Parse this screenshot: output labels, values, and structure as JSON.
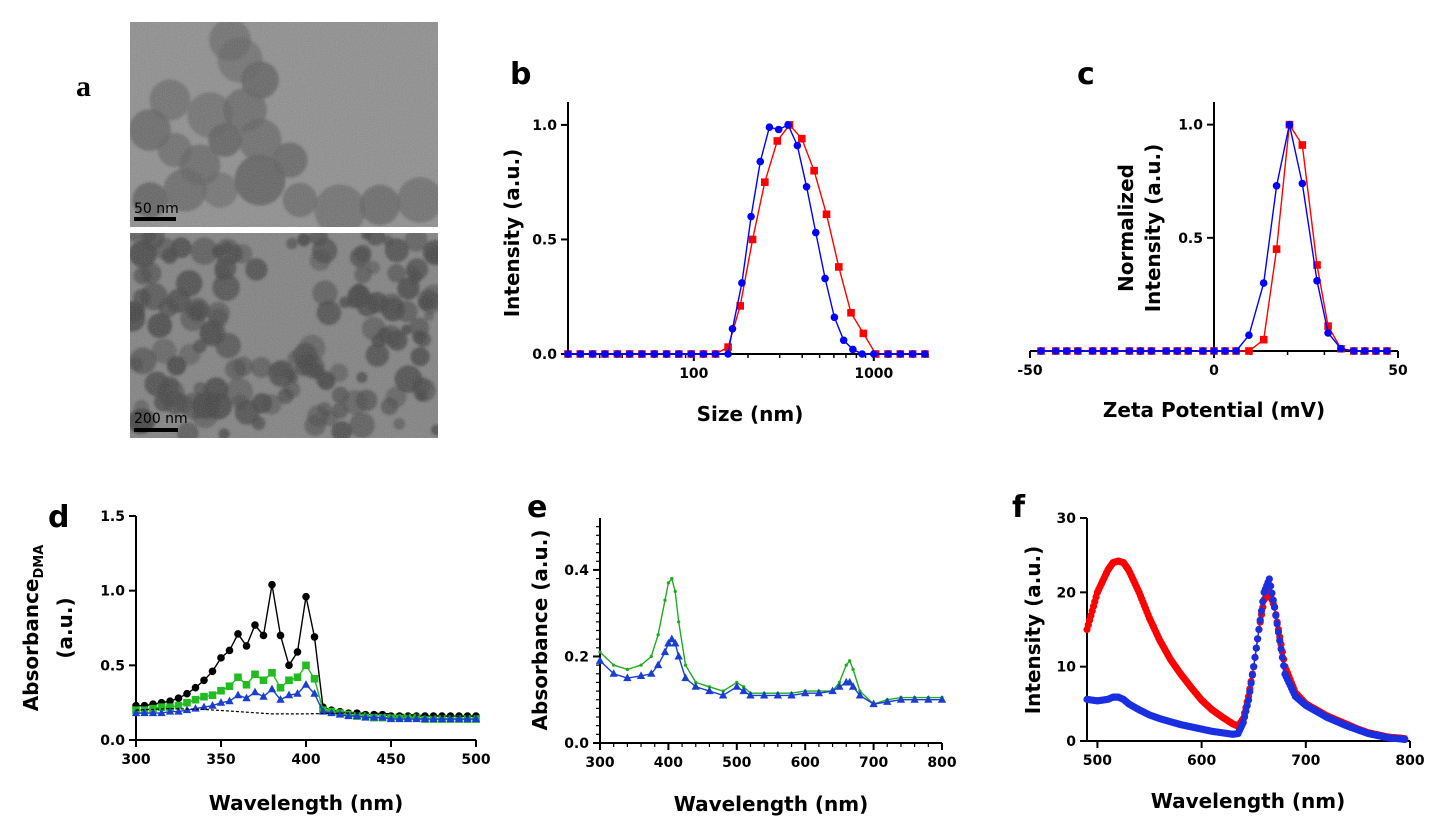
{
  "panels": [
    {
      "letter": "a"
    },
    {
      "letter": "b"
    },
    {
      "letter": "c"
    },
    {
      "letter": "d"
    },
    {
      "letter": "e"
    },
    {
      "letter": "f"
    }
  ],
  "tem": {
    "top_scale_label": "50 nm",
    "bottom_scale_label": "200 nm",
    "top_colors": {
      "bg": "#8c8c8c",
      "particle": "#5a5a5a"
    },
    "bottom_colors": {
      "bg": "#7e7e7e",
      "particle": "#3c3c3c"
    }
  },
  "chart_data": [
    {
      "id": "b",
      "type": "line",
      "x_scale": "log",
      "xlabel": "Size (nm)",
      "ylabel": "Intensity (a.u.)",
      "xlim": [
        20,
        2000
      ],
      "ylim": [
        0,
        1.1
      ],
      "xticks": [
        100,
        1000
      ],
      "yticks": [
        0.0,
        0.5,
        1.0
      ],
      "yticklabels": [
        "0.0",
        "0.5",
        "1.0"
      ],
      "xticklabels": [
        "100",
        "1000"
      ],
      "series": [
        {
          "color": "#ff0000",
          "marker": "square",
          "x": [
            20,
            23.4,
            27.4,
            32.1,
            37.6,
            44,
            51.5,
            60.3,
            70.6,
            82.6,
            96.7,
            113,
            132,
            155,
            181,
            212,
            248,
            291,
            340,
            398,
            466,
            546,
            639,
            747,
            875,
            1024,
            1199,
            1403,
            1643,
            1923
          ],
          "y": [
            0,
            0,
            0,
            0,
            0,
            0,
            0,
            0,
            0,
            0,
            0,
            0,
            0,
            0.03,
            0.21,
            0.5,
            0.75,
            0.93,
            1.0,
            0.94,
            0.8,
            0.61,
            0.38,
            0.18,
            0.09,
            0,
            0,
            0,
            0,
            0
          ]
        },
        {
          "color": "#0000ff",
          "marker": "circle",
          "x": [
            20,
            23.4,
            27.4,
            32.1,
            37.6,
            44,
            51.5,
            60.3,
            70.6,
            82.6,
            96.7,
            113,
            132,
            155,
            164,
            185,
            208,
            234,
            263,
            296,
            334,
            376,
            423,
            476,
            536,
            604,
            680,
            765,
            861,
            1000,
            1200,
            1403,
            1643,
            1923
          ],
          "y": [
            0,
            0,
            0,
            0,
            0,
            0,
            0,
            0,
            0,
            0,
            0,
            0,
            0,
            0,
            0.11,
            0.31,
            0.6,
            0.84,
            0.99,
            0.98,
            1.0,
            0.91,
            0.73,
            0.53,
            0.33,
            0.16,
            0.06,
            0.02,
            0,
            0,
            0,
            0,
            0,
            0
          ]
        }
      ]
    },
    {
      "id": "c",
      "type": "line",
      "xlabel": "Zeta Potential (mV)",
      "ylabel_lines": [
        "Normalized",
        "Intensity (a.u.)"
      ],
      "xlim": [
        -50,
        50
      ],
      "ylim": [
        0,
        1.1
      ],
      "xticks": [
        -50,
        0,
        50
      ],
      "yticks": [
        0.5,
        1.0
      ],
      "yticklabels": [
        "0.5",
        "1.0"
      ],
      "xticklabels": [
        "-50",
        "0",
        "50"
      ],
      "series": [
        {
          "color": "#ff0000",
          "marker": "square",
          "x": [
            -47,
            -43,
            -40,
            -37,
            -33,
            -30,
            -27,
            -23,
            -20,
            -17,
            -13,
            -10,
            -7,
            -3,
            0,
            3,
            6,
            9.5,
            13.5,
            17,
            20.5,
            24,
            28,
            31,
            34.5,
            38,
            41,
            44,
            47
          ],
          "y": [
            0,
            0,
            0,
            0,
            0,
            0,
            0,
            0,
            0,
            0,
            0,
            0,
            0,
            0,
            0,
            0,
            0,
            0,
            0.05,
            0.45,
            1.0,
            0.91,
            0.38,
            0.11,
            0.01,
            0,
            0,
            0,
            0
          ]
        },
        {
          "color": "#0000ff",
          "marker": "circle",
          "x": [
            -47,
            -43,
            -40,
            -37,
            -33,
            -30,
            -27,
            -23,
            -20,
            -17,
            -13,
            -10,
            -7,
            -3,
            0,
            3,
            6,
            9.5,
            13.5,
            17,
            20.5,
            24,
            28,
            31,
            34.5,
            38,
            41,
            44,
            47
          ],
          "y": [
            0,
            0,
            0,
            0,
            0,
            0,
            0,
            0,
            0,
            0,
            0,
            0,
            0,
            0,
            0,
            0,
            0,
            0.07,
            0.3,
            0.73,
            1.0,
            0.74,
            0.31,
            0.08,
            0.01,
            0,
            0,
            0,
            0
          ]
        }
      ]
    },
    {
      "id": "d",
      "type": "line",
      "xlabel": "Wavelength (nm)",
      "ylabel_main": "Absorbance",
      "ylabel_sub": "DMA",
      "ylabel_line2": "(a.u.)",
      "xlim": [
        300,
        500
      ],
      "ylim": [
        0,
        1.5
      ],
      "xticks": [
        300,
        350,
        400,
        450,
        500
      ],
      "yticks": [
        0.0,
        0.5,
        1.0,
        1.5
      ],
      "yticklabels": [
        "0.0",
        "0.5",
        "1.0",
        "1.5"
      ],
      "xticklabels": [
        "300",
        "350",
        "400",
        "450",
        "500"
      ],
      "series": [
        {
          "color": "#000000",
          "marker": "circle",
          "x": [
            300,
            305,
            310,
            315,
            320,
            325,
            330,
            335,
            340,
            345,
            350,
            355,
            360,
            365,
            370,
            375,
            380,
            385,
            390,
            395,
            400,
            405,
            410,
            415,
            420,
            425,
            430,
            435,
            440,
            445,
            450,
            455,
            460,
            465,
            470,
            475,
            480,
            485,
            490,
            495,
            500
          ],
          "y": [
            0.23,
            0.23,
            0.24,
            0.25,
            0.26,
            0.28,
            0.31,
            0.35,
            0.4,
            0.46,
            0.55,
            0.6,
            0.71,
            0.63,
            0.77,
            0.7,
            1.04,
            0.7,
            0.5,
            0.59,
            0.96,
            0.69,
            0.22,
            0.2,
            0.19,
            0.18,
            0.18,
            0.17,
            0.17,
            0.17,
            0.16,
            0.16,
            0.16,
            0.16,
            0.16,
            0.16,
            0.16,
            0.16,
            0.16,
            0.16,
            0.16
          ]
        },
        {
          "color": "#22bb22",
          "marker": "square",
          "x": [
            300,
            305,
            310,
            315,
            320,
            325,
            330,
            335,
            340,
            345,
            350,
            355,
            360,
            365,
            370,
            375,
            380,
            385,
            390,
            395,
            400,
            405,
            410,
            415,
            420,
            425,
            430,
            435,
            440,
            445,
            450,
            455,
            460,
            465,
            470,
            475,
            480,
            485,
            490,
            495,
            500
          ],
          "y": [
            0.2,
            0.2,
            0.21,
            0.22,
            0.22,
            0.23,
            0.25,
            0.27,
            0.29,
            0.3,
            0.33,
            0.36,
            0.42,
            0.37,
            0.44,
            0.4,
            0.45,
            0.35,
            0.4,
            0.42,
            0.5,
            0.41,
            0.2,
            0.19,
            0.18,
            0.17,
            0.16,
            0.16,
            0.15,
            0.15,
            0.15,
            0.15,
            0.15,
            0.15,
            0.14,
            0.14,
            0.14,
            0.14,
            0.14,
            0.14,
            0.14
          ]
        },
        {
          "color": "#1a3fd0",
          "marker": "triangle",
          "x": [
            300,
            305,
            310,
            315,
            320,
            325,
            330,
            335,
            340,
            345,
            350,
            355,
            360,
            365,
            370,
            375,
            380,
            385,
            390,
            395,
            400,
            405,
            410,
            415,
            420,
            425,
            430,
            435,
            440,
            445,
            450,
            455,
            460,
            465,
            470,
            475,
            480,
            485,
            490,
            495,
            500
          ],
          "y": [
            0.18,
            0.18,
            0.18,
            0.18,
            0.19,
            0.19,
            0.2,
            0.21,
            0.22,
            0.23,
            0.25,
            0.26,
            0.3,
            0.28,
            0.32,
            0.29,
            0.34,
            0.27,
            0.3,
            0.31,
            0.37,
            0.31,
            0.19,
            0.18,
            0.17,
            0.16,
            0.16,
            0.15,
            0.15,
            0.15,
            0.14,
            0.14,
            0.14,
            0.14,
            0.14,
            0.14,
            0.14,
            0.14,
            0.14,
            0.14,
            0.14
          ]
        },
        {
          "color": "#000000",
          "marker": "none",
          "dashed": true,
          "x": [
            300,
            320,
            340,
            360,
            380,
            400,
            420,
            440,
            460,
            480,
            500
          ],
          "y": [
            0.2,
            0.21,
            0.205,
            0.19,
            0.175,
            0.175,
            0.18,
            0.18,
            0.17,
            0.16,
            0.16
          ]
        }
      ]
    },
    {
      "id": "e",
      "type": "line",
      "xlabel": "Wavelength (nm)",
      "ylabel": "Absorbance (a.u.)",
      "xlim": [
        300,
        800
      ],
      "ylim": [
        0,
        0.52
      ],
      "xticks": [
        300,
        400,
        500,
        600,
        700,
        800
      ],
      "yticks": [
        0.0,
        0.2,
        0.4
      ],
      "yticklabels": [
        "0.0",
        "0.2",
        "0.4"
      ],
      "xticklabels": [
        "300",
        "400",
        "500",
        "600",
        "700",
        "800"
      ],
      "series": [
        {
          "color": "#22aa22",
          "marker": "dot",
          "x": [
            300,
            320,
            340,
            360,
            375,
            385,
            395,
            400,
            405,
            410,
            415,
            425,
            440,
            460,
            480,
            500,
            510,
            520,
            540,
            560,
            580,
            600,
            620,
            640,
            650,
            660,
            665,
            670,
            680,
            700,
            720,
            740,
            760,
            780,
            800
          ],
          "y": [
            0.21,
            0.18,
            0.17,
            0.18,
            0.2,
            0.25,
            0.33,
            0.37,
            0.38,
            0.35,
            0.28,
            0.18,
            0.14,
            0.13,
            0.12,
            0.14,
            0.13,
            0.115,
            0.115,
            0.115,
            0.115,
            0.12,
            0.12,
            0.12,
            0.14,
            0.18,
            0.19,
            0.17,
            0.12,
            0.09,
            0.1,
            0.105,
            0.105,
            0.105,
            0.105
          ]
        },
        {
          "color": "#1a3fd0",
          "marker": "triangle",
          "x": [
            300,
            320,
            340,
            360,
            375,
            385,
            395,
            400,
            405,
            410,
            415,
            425,
            440,
            460,
            480,
            500,
            510,
            520,
            540,
            560,
            580,
            600,
            620,
            640,
            650,
            660,
            665,
            670,
            680,
            700,
            720,
            740,
            760,
            780,
            800
          ],
          "y": [
            0.19,
            0.16,
            0.15,
            0.155,
            0.16,
            0.18,
            0.21,
            0.23,
            0.24,
            0.23,
            0.2,
            0.15,
            0.13,
            0.12,
            0.11,
            0.13,
            0.12,
            0.11,
            0.11,
            0.11,
            0.11,
            0.115,
            0.115,
            0.12,
            0.13,
            0.14,
            0.14,
            0.13,
            0.11,
            0.09,
            0.095,
            0.1,
            0.1,
            0.1,
            0.1
          ]
        }
      ]
    },
    {
      "id": "f",
      "type": "line",
      "xlabel": "Wavelength (nm)",
      "ylabel": "Intensity  (a.u.)",
      "xlim": [
        490,
        800
      ],
      "ylim": [
        0,
        30
      ],
      "xticks": [
        500,
        600,
        700,
        800
      ],
      "yticks": [
        0,
        10,
        20,
        30
      ],
      "yticklabels": [
        "0",
        "10",
        "20",
        "30"
      ],
      "xticklabels": [
        "500",
        "600",
        "700",
        "800"
      ],
      "series": [
        {
          "color": "#ff0000",
          "marker": "circle",
          "dense": true,
          "x": [
            490,
            500,
            510,
            515,
            520,
            525,
            530,
            540,
            550,
            560,
            570,
            580,
            590,
            600,
            610,
            620,
            630,
            635,
            640,
            645,
            650,
            655,
            660,
            665,
            670,
            680,
            690,
            700,
            710,
            720,
            730,
            740,
            750,
            760,
            770,
            780,
            790,
            795
          ],
          "y": [
            15,
            20,
            23,
            24,
            24.2,
            24,
            23,
            20,
            16.5,
            13.5,
            11,
            9,
            7.2,
            5.5,
            4.2,
            3.2,
            2.3,
            2.0,
            3.0,
            6,
            10,
            15,
            19,
            20,
            18,
            10,
            6.5,
            5,
            4.2,
            3.4,
            2.8,
            2.2,
            1.6,
            1.1,
            0.8,
            0.5,
            0.4,
            0.3
          ]
        },
        {
          "color": "#1a2fe0",
          "marker": "circle",
          "dense": true,
          "x": [
            490,
            500,
            510,
            515,
            520,
            525,
            530,
            540,
            550,
            560,
            570,
            580,
            590,
            600,
            610,
            620,
            630,
            635,
            640,
            645,
            650,
            655,
            660,
            665,
            670,
            680,
            690,
            700,
            710,
            720,
            730,
            740,
            750,
            760,
            770,
            780,
            790,
            795
          ],
          "y": [
            5.6,
            5.4,
            5.6,
            5.9,
            5.9,
            5.6,
            5.0,
            4.2,
            3.5,
            3.0,
            2.6,
            2.2,
            1.9,
            1.6,
            1.3,
            1.1,
            0.9,
            1.0,
            2.5,
            5.5,
            10,
            15,
            20,
            21.8,
            18,
            9,
            6,
            4.8,
            4,
            3.2,
            2.6,
            2.0,
            1.5,
            1.0,
            0.7,
            0.4,
            0.3,
            0.2
          ]
        }
      ]
    }
  ]
}
